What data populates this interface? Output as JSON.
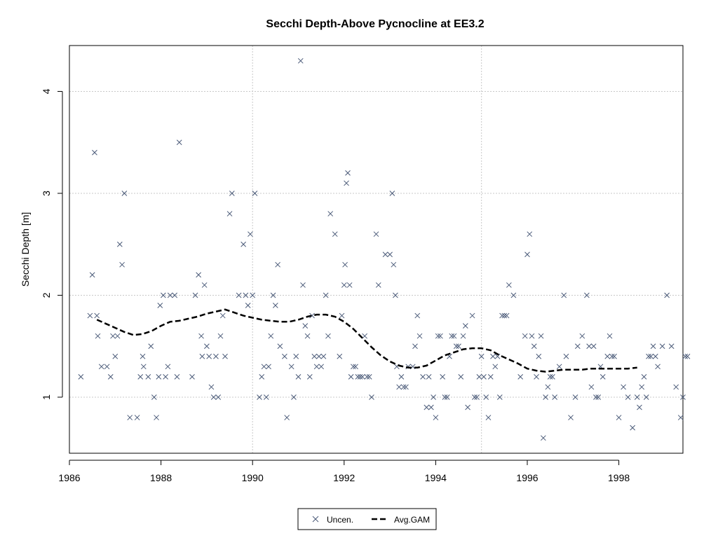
{
  "chart_data": {
    "type": "scatter",
    "title": "Secchi Depth-Above Pycnocline at EE3.2",
    "xlabel": "",
    "ylabel": "Secchi Depth [m]",
    "xlim": [
      1986.0,
      1999.4
    ],
    "ylim": [
      0.45,
      4.45
    ],
    "xticks": [
      1986,
      1988,
      1990,
      1992,
      1994,
      1996,
      1998
    ],
    "yticks": [
      1,
      2,
      3,
      4
    ],
    "grid": true,
    "legend_position": "bottom-center",
    "series": [
      {
        "name": "Uncen.",
        "marker": "x",
        "color": "#4a5a78",
        "points": [
          [
            1986.25,
            1.2
          ],
          [
            1986.45,
            1.8
          ],
          [
            1986.5,
            2.2
          ],
          [
            1986.55,
            3.4
          ],
          [
            1986.6,
            1.8
          ],
          [
            1986.62,
            1.6
          ],
          [
            1986.7,
            1.3
          ],
          [
            1986.82,
            1.3
          ],
          [
            1986.9,
            1.2
          ],
          [
            1986.95,
            1.6
          ],
          [
            1987.0,
            1.4
          ],
          [
            1987.05,
            1.6
          ],
          [
            1987.1,
            2.5
          ],
          [
            1987.15,
            2.3
          ],
          [
            1987.2,
            3.0
          ],
          [
            1987.32,
            0.8
          ],
          [
            1987.48,
            0.8
          ],
          [
            1987.55,
            1.2
          ],
          [
            1987.6,
            1.4
          ],
          [
            1987.62,
            1.3
          ],
          [
            1987.72,
            1.2
          ],
          [
            1987.78,
            1.5
          ],
          [
            1987.85,
            1.0
          ],
          [
            1987.9,
            0.8
          ],
          [
            1987.95,
            1.2
          ],
          [
            1987.98,
            1.9
          ],
          [
            1988.05,
            2.0
          ],
          [
            1988.1,
            1.2
          ],
          [
            1988.15,
            1.3
          ],
          [
            1988.2,
            2.0
          ],
          [
            1988.3,
            2.0
          ],
          [
            1988.35,
            1.2
          ],
          [
            1988.4,
            3.5
          ],
          [
            1988.68,
            1.2
          ],
          [
            1988.75,
            2.0
          ],
          [
            1988.82,
            2.2
          ],
          [
            1988.88,
            1.6
          ],
          [
            1988.9,
            1.4
          ],
          [
            1988.95,
            2.1
          ],
          [
            1989.0,
            1.5
          ],
          [
            1989.05,
            1.4
          ],
          [
            1989.1,
            1.1
          ],
          [
            1989.15,
            1.0
          ],
          [
            1989.2,
            1.4
          ],
          [
            1989.25,
            1.0
          ],
          [
            1989.3,
            1.6
          ],
          [
            1989.35,
            1.8
          ],
          [
            1989.4,
            1.4
          ],
          [
            1989.5,
            2.8
          ],
          [
            1989.55,
            3.0
          ],
          [
            1989.7,
            2.0
          ],
          [
            1989.8,
            2.5
          ],
          [
            1989.85,
            2.0
          ],
          [
            1989.9,
            1.9
          ],
          [
            1989.95,
            2.6
          ],
          [
            1990.0,
            2.0
          ],
          [
            1990.05,
            3.0
          ],
          [
            1990.15,
            1.0
          ],
          [
            1990.2,
            1.2
          ],
          [
            1990.25,
            1.3
          ],
          [
            1990.3,
            1.0
          ],
          [
            1990.35,
            1.3
          ],
          [
            1990.4,
            1.6
          ],
          [
            1990.45,
            2.0
          ],
          [
            1990.5,
            1.9
          ],
          [
            1990.55,
            2.3
          ],
          [
            1990.6,
            1.5
          ],
          [
            1990.7,
            1.4
          ],
          [
            1990.75,
            0.8
          ],
          [
            1990.85,
            1.3
          ],
          [
            1990.9,
            1.0
          ],
          [
            1990.95,
            1.4
          ],
          [
            1991.0,
            1.2
          ],
          [
            1991.05,
            4.3
          ],
          [
            1991.1,
            2.1
          ],
          [
            1991.15,
            1.7
          ],
          [
            1991.2,
            1.6
          ],
          [
            1991.25,
            1.2
          ],
          [
            1991.3,
            1.8
          ],
          [
            1991.35,
            1.4
          ],
          [
            1991.4,
            1.3
          ],
          [
            1991.45,
            1.4
          ],
          [
            1991.5,
            1.3
          ],
          [
            1991.55,
            1.4
          ],
          [
            1991.6,
            2.0
          ],
          [
            1991.65,
            1.6
          ],
          [
            1991.7,
            2.8
          ],
          [
            1991.8,
            2.6
          ],
          [
            1991.9,
            1.4
          ],
          [
            1991.95,
            1.8
          ],
          [
            1992.0,
            2.1
          ],
          [
            1992.02,
            2.3
          ],
          [
            1992.05,
            3.1
          ],
          [
            1992.08,
            3.2
          ],
          [
            1992.12,
            2.1
          ],
          [
            1992.15,
            1.2
          ],
          [
            1992.2,
            1.3
          ],
          [
            1992.25,
            1.3
          ],
          [
            1992.3,
            1.2
          ],
          [
            1992.35,
            1.2
          ],
          [
            1992.4,
            1.2
          ],
          [
            1992.45,
            1.6
          ],
          [
            1992.5,
            1.2
          ],
          [
            1992.55,
            1.2
          ],
          [
            1992.6,
            1.0
          ],
          [
            1992.7,
            2.6
          ],
          [
            1992.75,
            2.1
          ],
          [
            1992.9,
            2.4
          ],
          [
            1993.0,
            2.4
          ],
          [
            1993.05,
            3.0
          ],
          [
            1993.08,
            2.3
          ],
          [
            1993.12,
            2.0
          ],
          [
            1993.15,
            1.3
          ],
          [
            1993.2,
            1.1
          ],
          [
            1993.25,
            1.2
          ],
          [
            1993.3,
            1.1
          ],
          [
            1993.35,
            1.1
          ],
          [
            1993.4,
            1.3
          ],
          [
            1993.5,
            1.3
          ],
          [
            1993.55,
            1.5
          ],
          [
            1993.6,
            1.8
          ],
          [
            1993.65,
            1.6
          ],
          [
            1993.72,
            1.2
          ],
          [
            1993.8,
            0.9
          ],
          [
            1993.85,
            1.2
          ],
          [
            1993.9,
            0.9
          ],
          [
            1993.95,
            1.0
          ],
          [
            1994.0,
            0.8
          ],
          [
            1994.05,
            1.6
          ],
          [
            1994.1,
            1.6
          ],
          [
            1994.15,
            1.2
          ],
          [
            1994.2,
            1.0
          ],
          [
            1994.25,
            1.0
          ],
          [
            1994.3,
            1.4
          ],
          [
            1994.35,
            1.6
          ],
          [
            1994.4,
            1.6
          ],
          [
            1994.45,
            1.5
          ],
          [
            1994.5,
            1.5
          ],
          [
            1994.55,
            1.2
          ],
          [
            1994.6,
            1.6
          ],
          [
            1994.65,
            1.7
          ],
          [
            1994.7,
            0.9
          ],
          [
            1994.8,
            1.8
          ],
          [
            1994.85,
            1.0
          ],
          [
            1994.9,
            1.0
          ],
          [
            1994.95,
            1.2
          ],
          [
            1995.0,
            1.4
          ],
          [
            1995.05,
            1.2
          ],
          [
            1995.1,
            1.0
          ],
          [
            1995.15,
            0.8
          ],
          [
            1995.2,
            1.2
          ],
          [
            1995.25,
            1.4
          ],
          [
            1995.3,
            1.3
          ],
          [
            1995.35,
            1.4
          ],
          [
            1995.4,
            1.0
          ],
          [
            1995.45,
            1.8
          ],
          [
            1995.5,
            1.8
          ],
          [
            1995.55,
            1.8
          ],
          [
            1995.6,
            2.1
          ],
          [
            1995.7,
            2.0
          ],
          [
            1995.85,
            1.2
          ],
          [
            1995.95,
            1.6
          ],
          [
            1996.0,
            2.4
          ],
          [
            1996.05,
            2.6
          ],
          [
            1996.1,
            1.6
          ],
          [
            1996.15,
            1.5
          ],
          [
            1996.2,
            1.2
          ],
          [
            1996.25,
            1.4
          ],
          [
            1996.3,
            1.6
          ],
          [
            1996.35,
            0.6
          ],
          [
            1996.4,
            1.0
          ],
          [
            1996.45,
            1.1
          ],
          [
            1996.5,
            1.2
          ],
          [
            1996.55,
            1.2
          ],
          [
            1996.6,
            1.0
          ],
          [
            1996.7,
            1.3
          ],
          [
            1996.8,
            2.0
          ],
          [
            1996.85,
            1.4
          ],
          [
            1996.95,
            0.8
          ],
          [
            1997.05,
            1.0
          ],
          [
            1997.1,
            1.5
          ],
          [
            1997.2,
            1.6
          ],
          [
            1997.3,
            2.0
          ],
          [
            1997.35,
            1.5
          ],
          [
            1997.4,
            1.1
          ],
          [
            1997.45,
            1.5
          ],
          [
            1997.5,
            1.0
          ],
          [
            1997.55,
            1.0
          ],
          [
            1997.6,
            1.3
          ],
          [
            1997.65,
            1.2
          ],
          [
            1997.75,
            1.4
          ],
          [
            1997.8,
            1.6
          ],
          [
            1997.85,
            1.4
          ],
          [
            1997.9,
            1.4
          ],
          [
            1998.0,
            0.8
          ],
          [
            1998.1,
            1.1
          ],
          [
            1998.2,
            1.0
          ],
          [
            1998.3,
            0.7
          ],
          [
            1998.4,
            1.0
          ],
          [
            1998.45,
            0.9
          ],
          [
            1998.5,
            1.1
          ],
          [
            1998.55,
            1.2
          ],
          [
            1998.6,
            1.0
          ],
          [
            1998.65,
            1.4
          ],
          [
            1998.7,
            1.4
          ],
          [
            1998.75,
            1.5
          ],
          [
            1998.8,
            1.4
          ],
          [
            1998.85,
            1.3
          ],
          [
            1998.95,
            1.5
          ],
          [
            1999.05,
            2.0
          ],
          [
            1999.15,
            1.5
          ],
          [
            1999.25,
            1.1
          ],
          [
            1999.35,
            0.8
          ],
          [
            1999.4,
            1.0
          ],
          [
            1999.45,
            1.4
          ],
          [
            1999.5,
            1.4
          ]
        ]
      },
      {
        "name": "Avg.GAM",
        "line_style": "dashed",
        "color": "#000000",
        "points": [
          [
            1986.6,
            1.76
          ],
          [
            1986.8,
            1.72
          ],
          [
            1987.0,
            1.68
          ],
          [
            1987.2,
            1.64
          ],
          [
            1987.4,
            1.61
          ],
          [
            1987.6,
            1.62
          ],
          [
            1987.8,
            1.65
          ],
          [
            1988.0,
            1.7
          ],
          [
            1988.2,
            1.74
          ],
          [
            1988.4,
            1.75
          ],
          [
            1988.6,
            1.77
          ],
          [
            1988.8,
            1.79
          ],
          [
            1989.0,
            1.82
          ],
          [
            1989.2,
            1.84
          ],
          [
            1989.4,
            1.86
          ],
          [
            1989.6,
            1.83
          ],
          [
            1989.8,
            1.8
          ],
          [
            1990.0,
            1.78
          ],
          [
            1990.2,
            1.76
          ],
          [
            1990.4,
            1.75
          ],
          [
            1990.6,
            1.74
          ],
          [
            1990.8,
            1.74
          ],
          [
            1991.0,
            1.76
          ],
          [
            1991.2,
            1.79
          ],
          [
            1991.4,
            1.81
          ],
          [
            1991.6,
            1.81
          ],
          [
            1991.8,
            1.79
          ],
          [
            1992.0,
            1.74
          ],
          [
            1992.2,
            1.67
          ],
          [
            1992.4,
            1.58
          ],
          [
            1992.6,
            1.49
          ],
          [
            1992.8,
            1.41
          ],
          [
            1993.0,
            1.35
          ],
          [
            1993.2,
            1.31
          ],
          [
            1993.4,
            1.29
          ],
          [
            1993.6,
            1.29
          ],
          [
            1993.8,
            1.31
          ],
          [
            1994.0,
            1.36
          ],
          [
            1994.2,
            1.41
          ],
          [
            1994.4,
            1.44
          ],
          [
            1994.6,
            1.47
          ],
          [
            1994.8,
            1.48
          ],
          [
            1995.0,
            1.48
          ],
          [
            1995.2,
            1.46
          ],
          [
            1995.4,
            1.41
          ],
          [
            1995.6,
            1.37
          ],
          [
            1995.8,
            1.33
          ],
          [
            1996.0,
            1.28
          ],
          [
            1996.2,
            1.26
          ],
          [
            1996.4,
            1.25
          ],
          [
            1996.6,
            1.26
          ],
          [
            1996.8,
            1.27
          ],
          [
            1997.0,
            1.27
          ],
          [
            1997.2,
            1.27
          ],
          [
            1997.4,
            1.28
          ],
          [
            1997.6,
            1.28
          ],
          [
            1997.8,
            1.28
          ],
          [
            1998.0,
            1.28
          ],
          [
            1998.2,
            1.28
          ],
          [
            1998.4,
            1.29
          ]
        ]
      }
    ]
  }
}
